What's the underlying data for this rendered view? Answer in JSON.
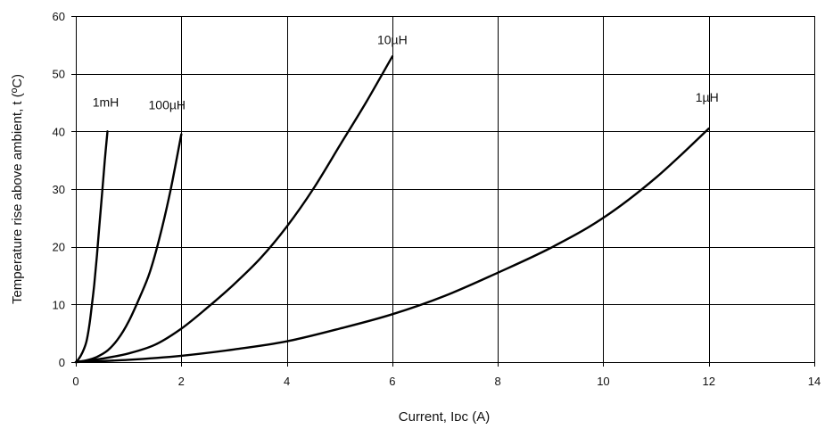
{
  "chart_data": {
    "type": "line",
    "title": "",
    "xlabel": "Current, Iᴅᴄ (A)",
    "ylabel": "Temperature rise above ambient, t (ºC)",
    "xlim": [
      0,
      14
    ],
    "ylim": [
      0,
      60
    ],
    "x_ticks": [
      0,
      2,
      4,
      6,
      8,
      10,
      12,
      14
    ],
    "y_ticks": [
      0,
      10,
      20,
      30,
      40,
      50,
      60
    ],
    "grid": true,
    "legend": "none",
    "series": [
      {
        "name": "1mH",
        "x": [
          0,
          0.05,
          0.1,
          0.15,
          0.2,
          0.25,
          0.3,
          0.35,
          0.4,
          0.45,
          0.5,
          0.55,
          0.6
        ],
        "y": [
          0,
          0.5,
          1.2,
          2.2,
          3.5,
          6,
          9.5,
          13.5,
          18.5,
          24,
          29.5,
          35,
          40
        ]
      },
      {
        "name": "100µH",
        "x": [
          0,
          0.2,
          0.4,
          0.6,
          0.8,
          1.0,
          1.2,
          1.4,
          1.6,
          1.8,
          2.0
        ],
        "y": [
          0,
          0.3,
          0.9,
          2.0,
          4.0,
          7.0,
          11.0,
          15.5,
          22.0,
          30.0,
          39.5
        ]
      },
      {
        "name": "10µH",
        "x": [
          0,
          0.5,
          1.0,
          1.5,
          2.0,
          2.5,
          3.0,
          3.5,
          4.0,
          4.5,
          5.0,
          5.5,
          6.0
        ],
        "y": [
          0,
          0.6,
          1.5,
          3.0,
          5.8,
          9.5,
          13.5,
          18.0,
          23.5,
          30.0,
          37.5,
          45.0,
          53.0
        ]
      },
      {
        "name": "1µH",
        "x": [
          0,
          1,
          2,
          3,
          4,
          5,
          6,
          7,
          8,
          9,
          10,
          11,
          12
        ],
        "y": [
          0,
          0.4,
          1.1,
          2.2,
          3.6,
          5.8,
          8.3,
          11.5,
          15.5,
          19.8,
          25.0,
          32.0,
          40.5
        ]
      }
    ]
  }
}
